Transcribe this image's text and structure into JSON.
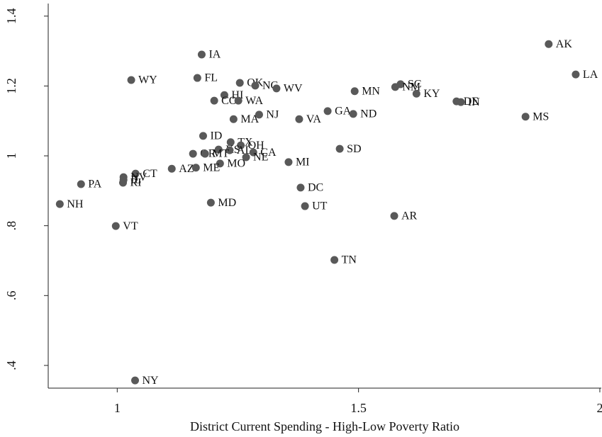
{
  "chart_data": {
    "type": "scatter",
    "x_label": "District Current Spending - High-Low Poverty Ratio",
    "labels": [
      "AK",
      "LA",
      "IA",
      "WY",
      "FL",
      "OK",
      "NC",
      "WV",
      "HI",
      "CO",
      "WA",
      "MN",
      "SC",
      "NM",
      "KY",
      "DE",
      "IN",
      "MS",
      "MA",
      "NJ",
      "VA",
      "GA",
      "ND",
      "ID",
      "TX",
      "OH",
      "KS",
      "AL",
      "SD",
      "OR",
      "MT",
      "CA",
      "NE",
      "MO",
      "MI",
      "AZ",
      "ME",
      "CT",
      "NV",
      "IL",
      "RI",
      "PA",
      "NH",
      "DC",
      "UT",
      "MD",
      "AR",
      "VT",
      "TN",
      "NY"
    ],
    "x": [
      1.894,
      1.95,
      1.175,
      1.029,
      1.166,
      1.254,
      1.286,
      1.33,
      1.222,
      1.201,
      1.251,
      1.492,
      1.587,
      1.576,
      1.62,
      1.703,
      1.712,
      1.846,
      1.241,
      1.294,
      1.377,
      1.436,
      1.489,
      1.178,
      1.235,
      1.256,
      1.21,
      1.233,
      1.461,
      1.157,
      1.182,
      1.282,
      1.267,
      1.213,
      1.355,
      1.113,
      1.163,
      1.038,
      1.013,
      1.013,
      1.012,
      0.925,
      0.881,
      1.38,
      1.389,
      1.194,
      1.574,
      0.997,
      1.45,
      1.037
    ],
    "y": [
      1.32,
      1.233,
      1.29,
      1.217,
      1.223,
      1.209,
      1.201,
      1.193,
      1.174,
      1.158,
      1.158,
      1.185,
      1.205,
      1.197,
      1.178,
      1.156,
      1.154,
      1.112,
      1.105,
      1.118,
      1.105,
      1.128,
      1.12,
      1.057,
      1.039,
      1.03,
      1.018,
      1.016,
      1.02,
      1.006,
      1.006,
      1.01,
      0.996,
      0.978,
      0.982,
      0.963,
      0.966,
      0.949,
      0.939,
      0.931,
      0.923,
      0.919,
      0.862,
      0.909,
      0.856,
      0.866,
      0.828,
      0.799,
      0.702,
      0.357
    ],
    "color": "#595959",
    "xlim": [
      0.857,
      2.003
    ],
    "ylim": [
      0.335,
      1.436
    ],
    "xticks": [
      1,
      1.5,
      2
    ],
    "yticks": [
      {
        "value": 0.4,
        "label": ".4"
      },
      {
        "value": 0.6,
        "label": ".6"
      },
      {
        "value": 0.8,
        "label": ".8"
      },
      1,
      {
        "value": 1.2,
        "label": "1.2"
      },
      {
        "value": 1.4,
        "label": "1.4"
      }
    ],
    "grid": false
  }
}
